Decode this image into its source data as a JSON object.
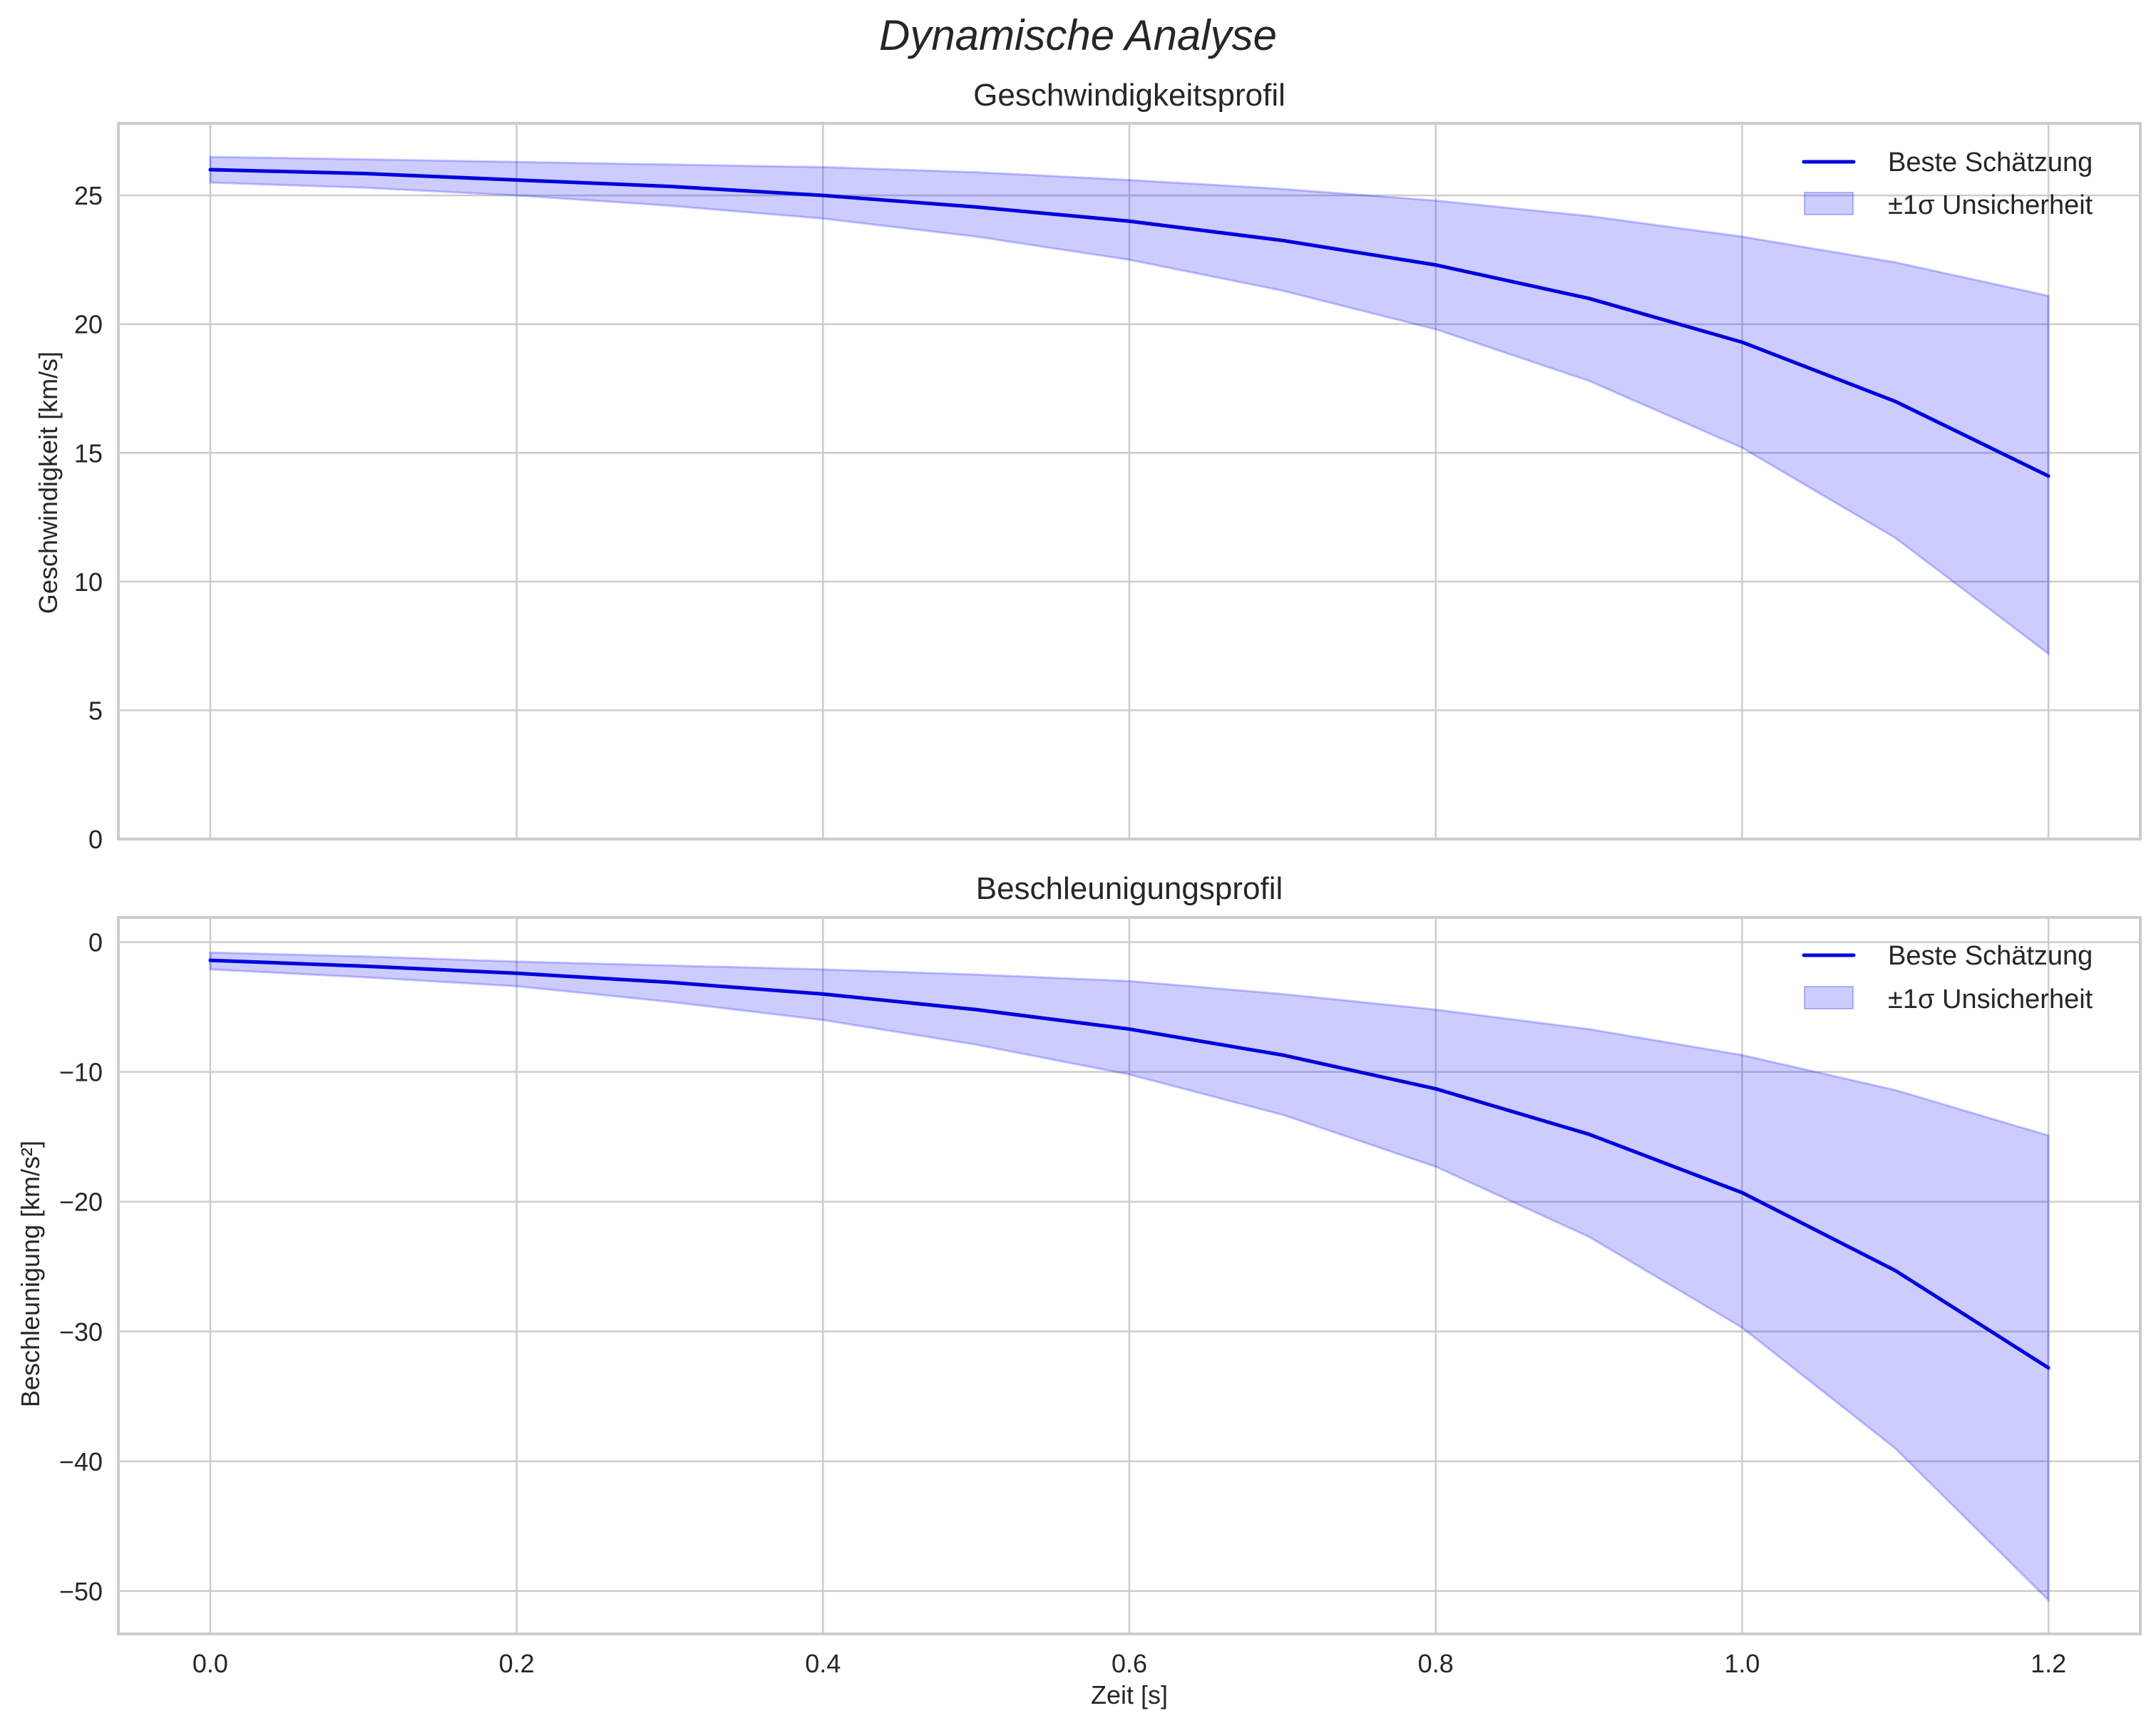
{
  "figure": {
    "suptitle": "Dynamische Analyse",
    "xlabel": "Zeit [s]",
    "colors": {
      "line": "#0000dd",
      "band_fill": "#0000ff",
      "band_alpha": 0.2,
      "grid": "#cccccc",
      "text": "#262626"
    }
  },
  "chart_data": [
    {
      "type": "line",
      "title": "Geschwindigkeitsprofil",
      "xlabel": "",
      "ylabel": "Geschwindigkeit [km/s]",
      "xlim": [
        -0.06,
        1.26
      ],
      "ylim": [
        0,
        27.8
      ],
      "xticks": [
        "0.0",
        "0.2",
        "0.4",
        "0.6",
        "0.8",
        "1.0",
        "1.2"
      ],
      "yticks": [
        0,
        5,
        10,
        15,
        20,
        25
      ],
      "ytick_labels": [
        "0",
        "5",
        "10",
        "15",
        "20",
        "25"
      ],
      "grid": true,
      "legend_position": "upper right",
      "x": [
        0.0,
        0.1,
        0.2,
        0.3,
        0.4,
        0.5,
        0.6,
        0.7,
        0.8,
        0.9,
        1.0,
        1.1,
        1.2
      ],
      "series": [
        {
          "name": "Beste Schätzung",
          "kind": "line",
          "values": [
            26.0,
            25.85,
            25.6,
            25.35,
            25.0,
            24.55,
            24.0,
            23.25,
            22.3,
            21.0,
            19.3,
            17.0,
            14.1
          ]
        },
        {
          "name": "±1σ Unsicherheit",
          "kind": "band",
          "lower": [
            25.5,
            25.3,
            25.0,
            24.6,
            24.1,
            23.4,
            22.5,
            21.3,
            19.8,
            17.8,
            15.2,
            11.7,
            7.2
          ],
          "upper": [
            26.5,
            26.4,
            26.3,
            26.2,
            26.1,
            25.9,
            25.6,
            25.25,
            24.8,
            24.2,
            23.4,
            22.4,
            21.1
          ]
        }
      ]
    },
    {
      "type": "line",
      "title": "Beschleunigungsprofil",
      "xlabel": "Zeit [s]",
      "ylabel": "Beschleunigung [km/s²]",
      "xlim": [
        -0.06,
        1.26
      ],
      "ylim": [
        -53.3,
        1.9
      ],
      "xticks": [
        "0.0",
        "0.2",
        "0.4",
        "0.6",
        "0.8",
        "1.0",
        "1.2"
      ],
      "yticks": [
        0,
        -10,
        -20,
        -30,
        -40,
        -50
      ],
      "ytick_labels": [
        "0",
        "−10",
        "−20",
        "−30",
        "−40",
        "−50"
      ],
      "grid": true,
      "legend_position": "upper right",
      "x": [
        0.0,
        0.1,
        0.2,
        0.3,
        0.4,
        0.5,
        0.6,
        0.7,
        0.8,
        0.9,
        1.0,
        1.1,
        1.2
      ],
      "series": [
        {
          "name": "Beste Schätzung",
          "kind": "line",
          "values": [
            -1.4,
            -1.85,
            -2.4,
            -3.1,
            -4.0,
            -5.2,
            -6.7,
            -8.7,
            -11.3,
            -14.8,
            -19.3,
            -25.3,
            -32.8
          ]
        },
        {
          "name": "±1σ Unsicherheit",
          "kind": "band",
          "lower": [
            -2.1,
            -2.7,
            -3.4,
            -4.6,
            -6.0,
            -7.9,
            -10.2,
            -13.3,
            -17.3,
            -22.7,
            -29.7,
            -39.0,
            -50.7
          ],
          "upper": [
            -0.8,
            -1.1,
            -1.5,
            -1.8,
            -2.1,
            -2.5,
            -3.0,
            -4.0,
            -5.2,
            -6.7,
            -8.7,
            -11.4,
            -14.9
          ]
        }
      ]
    }
  ],
  "axes": [
    {
      "legend": {
        "line_label": "Beste Schätzung",
        "band_label": "±1σ Unsicherheit"
      }
    },
    {
      "legend": {
        "line_label": "Beste Schätzung",
        "band_label": "±1σ Unsicherheit"
      }
    }
  ]
}
